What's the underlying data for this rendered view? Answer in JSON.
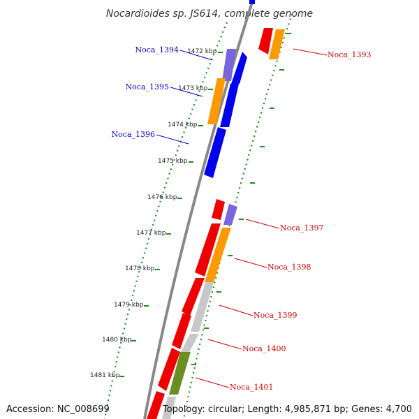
{
  "title": "Nocardioides sp. JS614, complete genome",
  "footer": {
    "accession": "Accession: NC_008699",
    "topology": "Topology: circular; Length: 4,985,871 bp; Genes: 4,700"
  },
  "scale_labels": [
    "1472 kbp",
    "1473 kbp",
    "1474 kbp",
    "1475 kbp",
    "1476 kbp",
    "1477 kbp",
    "1478 kbp",
    "1479 kbp",
    "1480 kbp",
    "1481 kbp"
  ],
  "gene_labels": [
    {
      "name": "Noca_1394",
      "strand": "minus",
      "color": "#0000cc"
    },
    {
      "name": "Noca_1395",
      "strand": "minus",
      "color": "#0000cc"
    },
    {
      "name": "Noca_1396",
      "strand": "minus",
      "color": "#0000cc"
    },
    {
      "name": "Noca_1393",
      "strand": "plus",
      "color": "#cc0000"
    },
    {
      "name": "Noca_1397",
      "strand": "plus",
      "color": "#cc0000"
    },
    {
      "name": "Noca_1398",
      "strand": "plus",
      "color": "#cc0000"
    },
    {
      "name": "Noca_1399",
      "strand": "plus",
      "color": "#cc0000"
    },
    {
      "name": "Noca_1400",
      "strand": "plus",
      "color": "#cc0000"
    },
    {
      "name": "Noca_1401",
      "strand": "plus",
      "color": "#cc0000"
    }
  ],
  "colors": {
    "blue": "#0000ee",
    "purple": "#7766dd",
    "orange": "#ff9900",
    "red": "#ee0000",
    "gray": "#c8c8c8",
    "olive": "#6b8e23",
    "backbone": "#888888",
    "ticks": "#228b22"
  }
}
